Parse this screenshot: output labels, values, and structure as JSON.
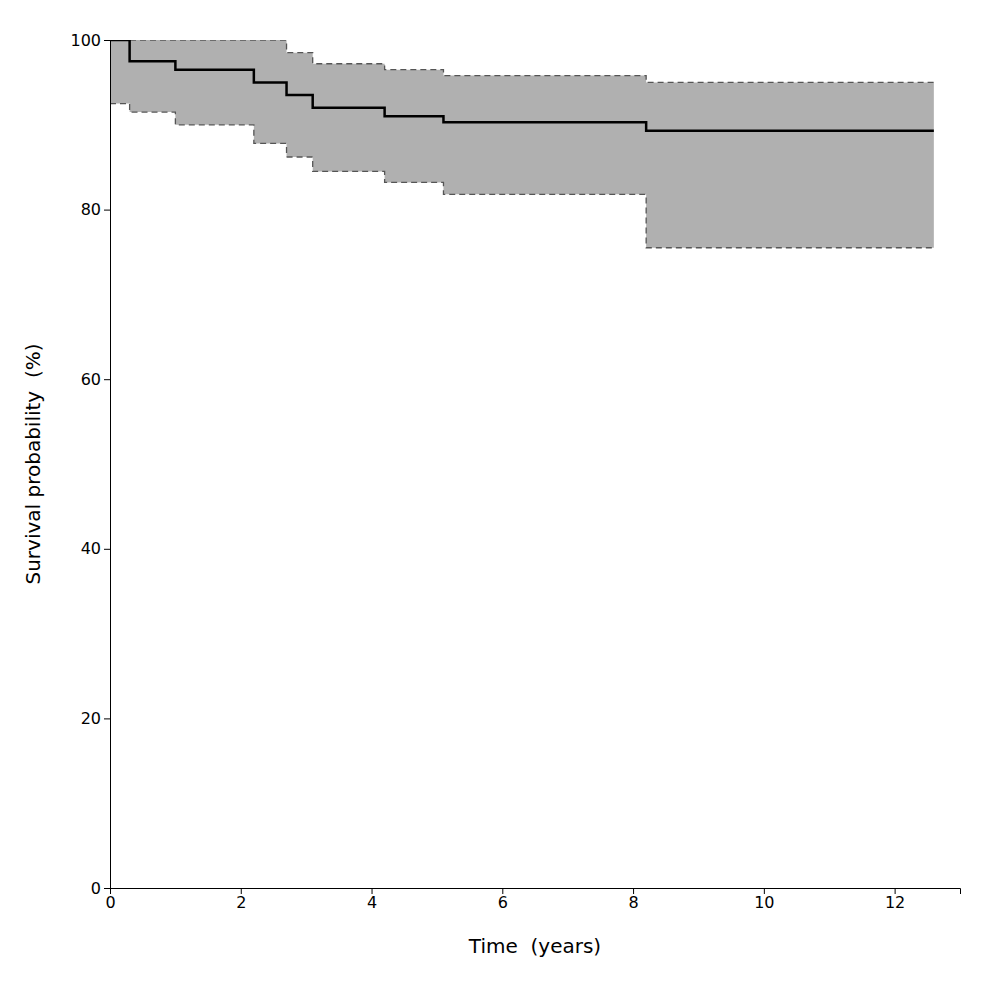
{
  "chart_data": {
    "type": "line",
    "xlabel": "Time  (years)",
    "ylabel": "Survival probability  (%)",
    "x": [
      0,
      0.3,
      0.3,
      1.0,
      1.0,
      2.2,
      2.2,
      2.7,
      2.7,
      3.1,
      3.1,
      4.2,
      4.2,
      5.1,
      5.1,
      8.2,
      8.2,
      12.6
    ],
    "series": [
      {
        "type": "area",
        "color": "#b0b0b0",
        "values": [
          100,
          100,
          100,
          100,
          100,
          100,
          100,
          100,
          98.5,
          98.5,
          97.2,
          97.2,
          96.5,
          96.5,
          95.8,
          95.8,
          95.0,
          95.0
        ],
        "lower": [
          92.5,
          92.5,
          91.5,
          91.5,
          90.0,
          90.0,
          87.8,
          87.8,
          86.2,
          86.2,
          84.5,
          84.5,
          83.2,
          83.2,
          81.8,
          81.8,
          75.5,
          75.5
        ]
      },
      {
        "type": "line",
        "color": "#555555",
        "line_style": "dashed",
        "values": [
          100,
          100,
          100,
          100,
          100,
          100,
          100,
          100,
          98.5,
          98.5,
          97.2,
          97.2,
          96.5,
          96.5,
          95.8,
          95.8,
          95.0,
          95.0
        ]
      },
      {
        "type": "line",
        "color": "#555555",
        "line_style": "dashed",
        "values": [
          92.5,
          92.5,
          91.5,
          91.5,
          90.0,
          90.0,
          87.8,
          87.8,
          86.2,
          86.2,
          84.5,
          84.5,
          83.2,
          83.2,
          81.8,
          81.8,
          75.5,
          75.5
        ]
      },
      {
        "type": "line",
        "color": "#000000",
        "line_style": "solid",
        "values": [
          100,
          100,
          97.5,
          97.5,
          96.5,
          96.5,
          95.0,
          95.0,
          93.5,
          93.5,
          92.0,
          92.0,
          91.0,
          91.0,
          90.3,
          90.3,
          89.3,
          89.3
        ]
      }
    ],
    "xlim": [
      0,
      13
    ],
    "ylim": [
      0,
      100
    ],
    "xticks": [
      0,
      2,
      4,
      6,
      8,
      10,
      12
    ],
    "yticks": [
      0,
      20,
      40,
      60,
      80,
      100
    ],
    "grid": false
  }
}
